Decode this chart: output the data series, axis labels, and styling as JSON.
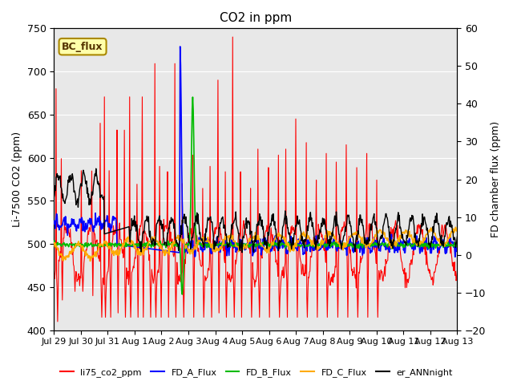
{
  "title": "CO2 in ppm",
  "ylabel_left": "Li-7500 CO2 (ppm)",
  "ylabel_right": "FD chamber flux (ppm)",
  "ylim_left": [
    400,
    750
  ],
  "ylim_right": [
    -20,
    60
  ],
  "yticks_left": [
    400,
    450,
    500,
    550,
    600,
    650,
    700,
    750
  ],
  "yticks_right": [
    -20,
    -10,
    0,
    10,
    20,
    30,
    40,
    50,
    60
  ],
  "xtick_labels": [
    "Jul 29",
    "Jul 30",
    "Jul 31",
    "Aug 1",
    "Aug 2",
    "Aug 3",
    "Aug 4",
    "Aug 5",
    "Aug 6",
    "Aug 7",
    "Aug 8",
    "Aug 9",
    "Aug 10",
    "Aug 11",
    "Aug 12",
    "Aug 13"
  ],
  "colors": {
    "li75": "#ff0000",
    "FD_A": "#0000ff",
    "FD_B": "#00bb00",
    "FD_C": "#ffaa00",
    "er_ANN": "#000000"
  },
  "legend_label": "BC_flux",
  "background_color": "#e8e8e8",
  "plot_bg": "#e8e8e8"
}
